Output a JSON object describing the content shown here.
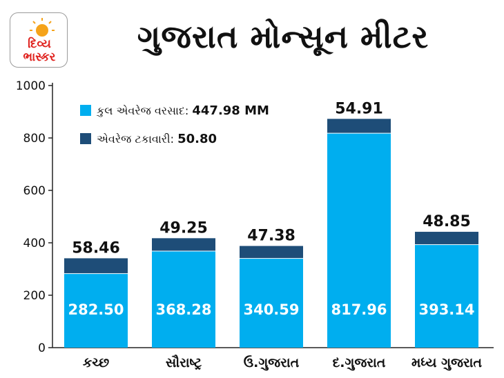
{
  "logo": {
    "line1": "દિવ્ય",
    "line2": "ભાસ્કર",
    "colors": {
      "sun": "#f5a31a",
      "text": "#e0231f"
    }
  },
  "title": "ગુજરાત મોન્સૂન મીટર",
  "colors": {
    "base": "#00aeef",
    "top": "#1e4d78",
    "text": "#111111"
  },
  "legend": [
    {
      "label": "કુલ એવરેજ વરસાદ: ",
      "value": "447.98 MM",
      "color": "#00aeef"
    },
    {
      "label": "એવરેજ ટકાવારી: ",
      "value": "50.80",
      "color": "#1e4d78"
    }
  ],
  "chart_data": {
    "type": "bar",
    "stacked": true,
    "categories": [
      "કચ્છ",
      "સૌરાષ્ટ્ર",
      "ઉ.ગુજરાત",
      "દ.ગુજરાત",
      "મધ્ય ગુજરાત"
    ],
    "series": [
      {
        "name": "કુલ એવરેજ વરસાદ",
        "values": [
          282.5,
          368.28,
          340.59,
          817.96,
          393.14
        ],
        "labels": [
          "282.50",
          "368.28",
          "340.59",
          "817.96",
          "393.14"
        ]
      },
      {
        "name": "એવરેજ ટકાવારી",
        "values": [
          58.46,
          49.25,
          47.38,
          54.91,
          48.85
        ],
        "labels": [
          "58.46",
          "49.25",
          "47.38",
          "54.91",
          "48.85"
        ]
      }
    ],
    "yticks": [
      "0",
      "200",
      "400",
      "600",
      "800",
      "1000"
    ],
    "ylim": [
      0,
      1000
    ],
    "legend_position": "top-left"
  }
}
